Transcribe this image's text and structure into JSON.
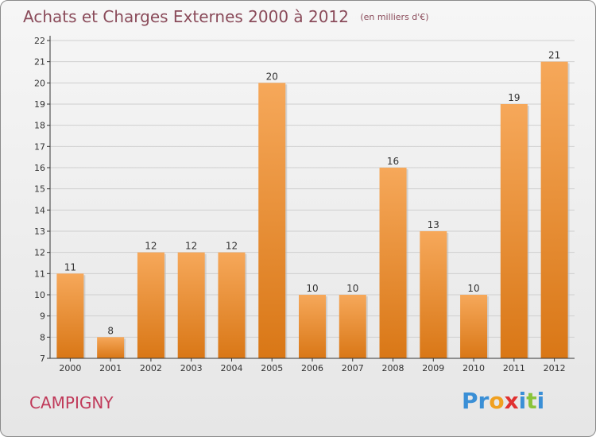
{
  "title": "Achats et Charges Externes 2000 à 2012",
  "unit_note": "(en milliers d'€)",
  "commune": "CAMPIGNY",
  "brand": {
    "letters": [
      "P",
      "r",
      "o",
      "x",
      "i",
      "t",
      "i"
    ],
    "colors": [
      "#3a8fd6",
      "#3a8fd6",
      "#f0a020",
      "#e03030",
      "#3a8fd6",
      "#8ac43a",
      "#3a8fd6"
    ]
  },
  "colors": {
    "bar_top": "#f6a85a",
    "bar_bottom": "#d97716",
    "axis": "#333333",
    "grid": "#cfcfcf"
  },
  "chart_data": {
    "type": "bar",
    "title": "Achats et Charges Externes 2000 à 2012",
    "categories": [
      "2000",
      "2001",
      "2002",
      "2003",
      "2004",
      "2005",
      "2006",
      "2007",
      "2008",
      "2009",
      "2010",
      "2011",
      "2012"
    ],
    "values": [
      11,
      8,
      12,
      12,
      12,
      20,
      10,
      10,
      16,
      13,
      10,
      19,
      21
    ],
    "yticks": [
      7,
      8,
      9,
      10,
      11,
      12,
      13,
      14,
      15,
      16,
      17,
      18,
      19,
      20,
      21,
      22
    ],
    "ylim": [
      7,
      22
    ],
    "grid": true,
    "legend": "none"
  }
}
